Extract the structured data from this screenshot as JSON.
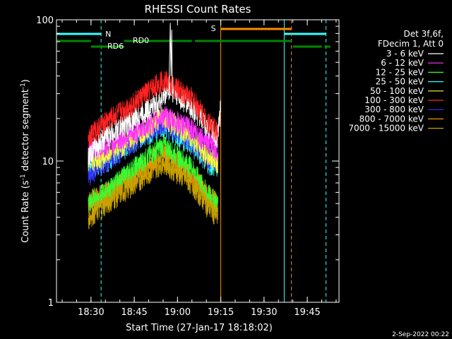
{
  "chart_data": {
    "type": "line",
    "title": "RHESSI Count Rates",
    "xlabel": "Start Time (27-Jan-17 18:18:02)",
    "ylabel_main": "Count Rate (s",
    "ylabel_sup": "-1",
    "ylabel_mid": " detector segment",
    "ylabel_sup2": "-1",
    "ylabel_end": ")",
    "yscale": "log",
    "ylim": [
      1,
      100
    ],
    "xlim": [
      "18:18:02",
      "19:56:00"
    ],
    "x_ticks": [
      "18:30",
      "18:45",
      "19:00",
      "19:15",
      "19:30",
      "19:45"
    ],
    "y_ticks": [
      "1",
      "10",
      "100"
    ],
    "grid": false,
    "legend_position": "right",
    "legend_header": [
      "Det 3f,6f,",
      "FDecim 1, Att 0"
    ],
    "series": [
      {
        "name": "3 - 6 keV",
        "color": "#ffffff",
        "x": [
          "18:29",
          "18:35",
          "18:45",
          "18:55",
          "18:57",
          "19:05",
          "19:10",
          "19:14",
          "19:15"
        ],
        "values": [
          11,
          15,
          20,
          28,
          33,
          24,
          18,
          15,
          25
        ]
      },
      {
        "name": "6 - 12 keV",
        "color": "#ff33ff",
        "x": [
          "18:29",
          "18:35",
          "18:45",
          "18:55",
          "19:05",
          "19:10",
          "19:14"
        ],
        "values": [
          12,
          13,
          16,
          21,
          17,
          14,
          12
        ]
      },
      {
        "name": "12 - 25 keV",
        "color": "#33ff33",
        "x": [
          "18:29",
          "18:35",
          "18:45",
          "18:55",
          "19:05",
          "19:10",
          "19:14"
        ],
        "values": [
          5,
          6,
          9,
          13,
          9,
          6,
          5
        ]
      },
      {
        "name": "25 - 50 keV",
        "color": "#33ffff",
        "x": [
          "18:29",
          "18:35",
          "18:45",
          "18:55",
          "19:05",
          "19:10",
          "19:14"
        ],
        "values": [
          9,
          10,
          14,
          18,
          13,
          10,
          9
        ]
      },
      {
        "name": "50 - 100 keV",
        "color": "#ffff33",
        "x": [
          "18:29",
          "18:35",
          "18:45",
          "18:55",
          "19:05",
          "19:10",
          "19:14"
        ],
        "values": [
          10,
          11,
          15,
          21,
          15,
          11,
          10
        ]
      },
      {
        "name": "100 - 300 keV",
        "color": "#ff2222",
        "x": [
          "18:29",
          "18:35",
          "18:45",
          "18:55",
          "19:05",
          "19:10",
          "19:14"
        ],
        "values": [
          15,
          19,
          26,
          38,
          28,
          20,
          16
        ]
      },
      {
        "name": "300 - 800 keV",
        "color": "#3333ff",
        "x": [
          "18:29",
          "18:35",
          "18:45",
          "18:55",
          "19:05",
          "19:10",
          "19:14"
        ],
        "values": [
          8,
          10,
          14,
          19,
          14,
          11,
          10
        ]
      },
      {
        "name": "800 - 7000 keV",
        "color": "#ff8c00",
        "x": [
          "18:29",
          "18:35",
          "18:45",
          "18:55",
          "19:05",
          "19:10",
          "19:14"
        ],
        "values": [
          5.2,
          6,
          8,
          12,
          8,
          6,
          5
        ]
      },
      {
        "name": "7000 - 15000 keV",
        "color": "#c8a000",
        "x": [
          "18:29",
          "18:35",
          "18:45",
          "18:55",
          "19:05",
          "19:10",
          "19:14"
        ],
        "values": [
          4,
          5,
          7,
          10,
          7,
          5,
          4
        ]
      }
    ],
    "night_intervals": [
      [
        "18:18:02",
        "18:33:30"
      ],
      [
        "19:37:00",
        "19:51:30"
      ]
    ],
    "saa_interval": [
      "19:15:00",
      "19:39:30"
    ],
    "decimation_segments": {
      "RD0": [
        [
          "18:18:02",
          "18:30:00"
        ],
        [
          "18:41:30",
          "19:05:00"
        ],
        [
          "19:06:00",
          "19:39:30"
        ]
      ],
      "RD6": [
        [
          "18:30:00",
          "18:41:30"
        ],
        [
          "19:40:00",
          "19:50:00"
        ],
        [
          "19:51:00",
          "19:53:00"
        ]
      ]
    },
    "bar_labels": {
      "night": "N",
      "saa": "S",
      "rd0": "RD0",
      "rd6": "RD6"
    },
    "footer_date": "2-Sep-2022 00:22"
  }
}
